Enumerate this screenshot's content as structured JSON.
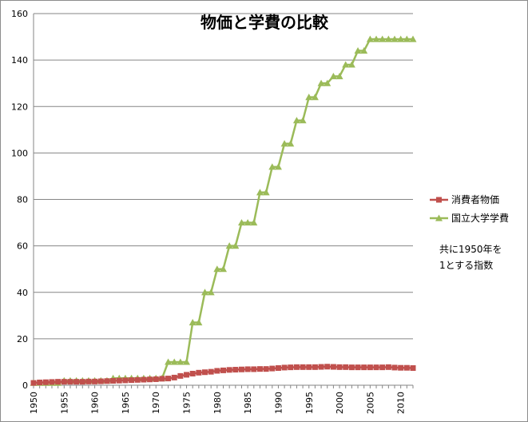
{
  "chart_data": {
    "type": "line",
    "title": "物価と学費の比較",
    "xlabel": "",
    "ylabel": "",
    "xlim": [
      1950,
      2012
    ],
    "ylim": [
      0,
      160
    ],
    "y_ticks": [
      0,
      20,
      40,
      60,
      80,
      100,
      120,
      140,
      160
    ],
    "x_ticks": [
      1950,
      1955,
      1960,
      1965,
      1970,
      1975,
      1980,
      1985,
      1990,
      1995,
      2000,
      2005,
      2010
    ],
    "grid": "horizontal",
    "legend_position": "right",
    "note_lines": [
      "共に1950年を",
      "1とする指数"
    ],
    "series": [
      {
        "name": "消費者物価",
        "color": "#c0504d",
        "marker": "square",
        "x": [
          1950,
          1951,
          1952,
          1953,
          1954,
          1955,
          1956,
          1957,
          1958,
          1959,
          1960,
          1961,
          1962,
          1963,
          1964,
          1965,
          1966,
          1967,
          1968,
          1969,
          1970,
          1971,
          1972,
          1973,
          1974,
          1975,
          1976,
          1977,
          1978,
          1979,
          1980,
          1981,
          1982,
          1983,
          1984,
          1985,
          1986,
          1987,
          1988,
          1989,
          1990,
          1991,
          1992,
          1993,
          1994,
          1995,
          1996,
          1997,
          1998,
          1999,
          2000,
          2001,
          2002,
          2003,
          2004,
          2005,
          2006,
          2007,
          2008,
          2009,
          2010,
          2011,
          2012
        ],
        "values": [
          1,
          1.2,
          1.3,
          1.4,
          1.5,
          1.5,
          1.5,
          1.5,
          1.5,
          1.6,
          1.6,
          1.7,
          1.8,
          1.9,
          2.0,
          2.1,
          2.2,
          2.3,
          2.4,
          2.5,
          2.6,
          2.8,
          2.9,
          3.3,
          4.0,
          4.5,
          5.0,
          5.4,
          5.6,
          5.8,
          6.2,
          6.4,
          6.6,
          6.7,
          6.8,
          6.9,
          6.9,
          7.0,
          7.0,
          7.2,
          7.4,
          7.6,
          7.7,
          7.8,
          7.8,
          7.8,
          7.8,
          7.9,
          8.0,
          7.9,
          7.8,
          7.8,
          7.7,
          7.7,
          7.7,
          7.7,
          7.7,
          7.7,
          7.8,
          7.6,
          7.5,
          7.5,
          7.4
        ]
      },
      {
        "name": "国立大学学費",
        "color": "#9bbb59",
        "marker": "triangle",
        "x": [
          1950,
          1951,
          1952,
          1953,
          1954,
          1955,
          1956,
          1957,
          1958,
          1959,
          1960,
          1961,
          1962,
          1963,
          1964,
          1965,
          1966,
          1967,
          1968,
          1969,
          1970,
          1971,
          1972,
          1973,
          1974,
          1975,
          1976,
          1977,
          1978,
          1979,
          1980,
          1981,
          1982,
          1983,
          1984,
          1985,
          1986,
          1987,
          1988,
          1989,
          1990,
          1991,
          1992,
          1993,
          1994,
          1995,
          1996,
          1997,
          1998,
          1999,
          2000,
          2001,
          2002,
          2003,
          2004,
          2005,
          2006,
          2007,
          2008,
          2009,
          2010,
          2011,
          2012
        ],
        "values": [
          1,
          1,
          1,
          1,
          1,
          2,
          2,
          2,
          2,
          2,
          2,
          2,
          2,
          3,
          3,
          3,
          3,
          3,
          3,
          3,
          3,
          3,
          10,
          10,
          10,
          10,
          27,
          27,
          40,
          40,
          50,
          50,
          60,
          60,
          70,
          70,
          70,
          83,
          83,
          94,
          94,
          104,
          104,
          114,
          114,
          124,
          124,
          130,
          130,
          133,
          133,
          138,
          138,
          144,
          144,
          149,
          149,
          149,
          149,
          149,
          149,
          149,
          149
        ]
      }
    ]
  }
}
